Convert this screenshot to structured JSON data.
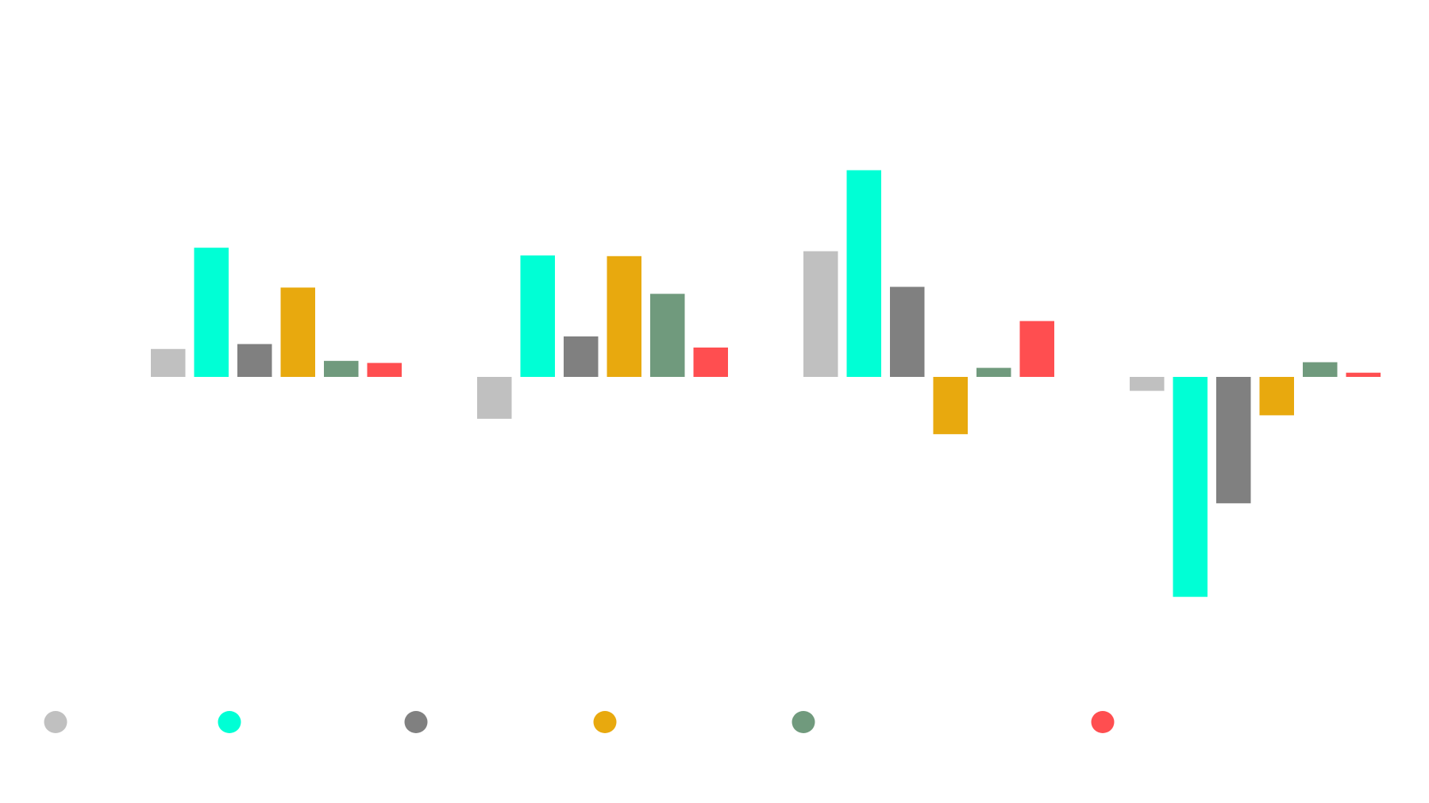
{
  "chart_data": {
    "type": "bar",
    "title": "",
    "xlabel": "",
    "ylabel": "",
    "grid": false,
    "legend_placement": "bottom",
    "categories": [
      "",
      "",
      "",
      ""
    ],
    "ylim": [
      -3.2,
      3.2
    ],
    "series": [
      {
        "color": "#c0c0c0",
        "values": [
          0.4,
          -0.6,
          1.8,
          -0.2
        ]
      },
      {
        "color": "#00ffd5",
        "values": [
          1.85,
          1.74,
          2.96,
          -3.15
        ]
      },
      {
        "color": "#808080",
        "values": [
          0.47,
          0.58,
          1.29,
          -1.81
        ]
      },
      {
        "color": "#e8a90e",
        "values": [
          1.28,
          1.73,
          -0.82,
          -0.55
        ]
      },
      {
        "color": "#709a7d",
        "values": [
          0.23,
          1.19,
          0.13,
          0.21
        ]
      },
      {
        "color": "#ff4e50",
        "values": [
          0.2,
          0.42,
          0.8,
          0.06
        ]
      }
    ]
  }
}
